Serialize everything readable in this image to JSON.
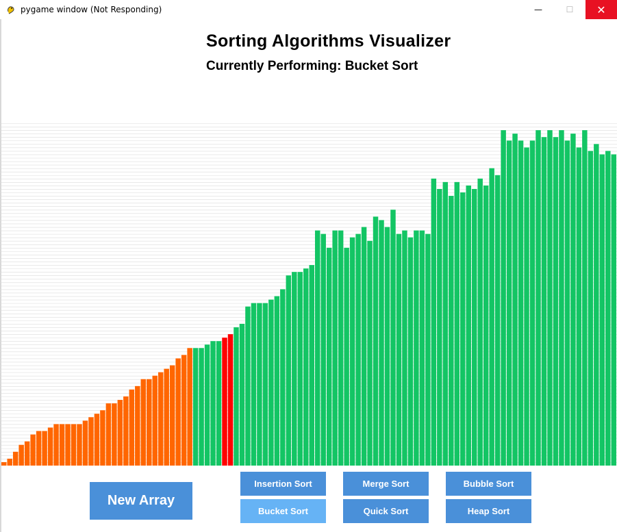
{
  "window": {
    "title": "pygame window (Not Responding)",
    "minimize_glyph": "—",
    "maximize_glyph": "☐",
    "close_glyph": "✕"
  },
  "header": {
    "title": "Sorting Algorithms Visualizer",
    "subtitle": "Currently Performing: Bucket Sort"
  },
  "colors": {
    "sorted": "#ff6600",
    "unsorted": "#13c564",
    "active": "#ff0000",
    "button": "#4a90d9",
    "button_active": "#66b3f5",
    "gridline": "#dcdcdc"
  },
  "chart_data": {
    "type": "bar",
    "ylim": [
      0,
      99
    ],
    "values": [
      1,
      2,
      4,
      6,
      7,
      9,
      10,
      10,
      11,
      12,
      12,
      12,
      12,
      12,
      13,
      14,
      15,
      16,
      18,
      18,
      19,
      20,
      22,
      23,
      25,
      25,
      26,
      27,
      28,
      29,
      31,
      32,
      34,
      34,
      34,
      35,
      36,
      36,
      37,
      38,
      40,
      41,
      46,
      47,
      47,
      47,
      48,
      49,
      51,
      55,
      56,
      56,
      57,
      58,
      68,
      67,
      63,
      68,
      68,
      63,
      66,
      67,
      69,
      65,
      72,
      71,
      69,
      74,
      67,
      68,
      66,
      68,
      68,
      67,
      83,
      80,
      82,
      78,
      82,
      79,
      81,
      80,
      83,
      81,
      86,
      84,
      97,
      94,
      96,
      94,
      92,
      94,
      97,
      95,
      97,
      95,
      97,
      94,
      96,
      92,
      97,
      91,
      93,
      90,
      91,
      90
    ],
    "sorted_count": 33,
    "active_indices": [
      38,
      39
    ]
  },
  "buttons": {
    "new_array": "New Array",
    "insertion": "Insertion Sort",
    "merge": "Merge Sort",
    "bubble": "Bubble Sort",
    "bucket": "Bucket Sort",
    "quick": "Quick Sort",
    "heap": "Heap Sort"
  }
}
